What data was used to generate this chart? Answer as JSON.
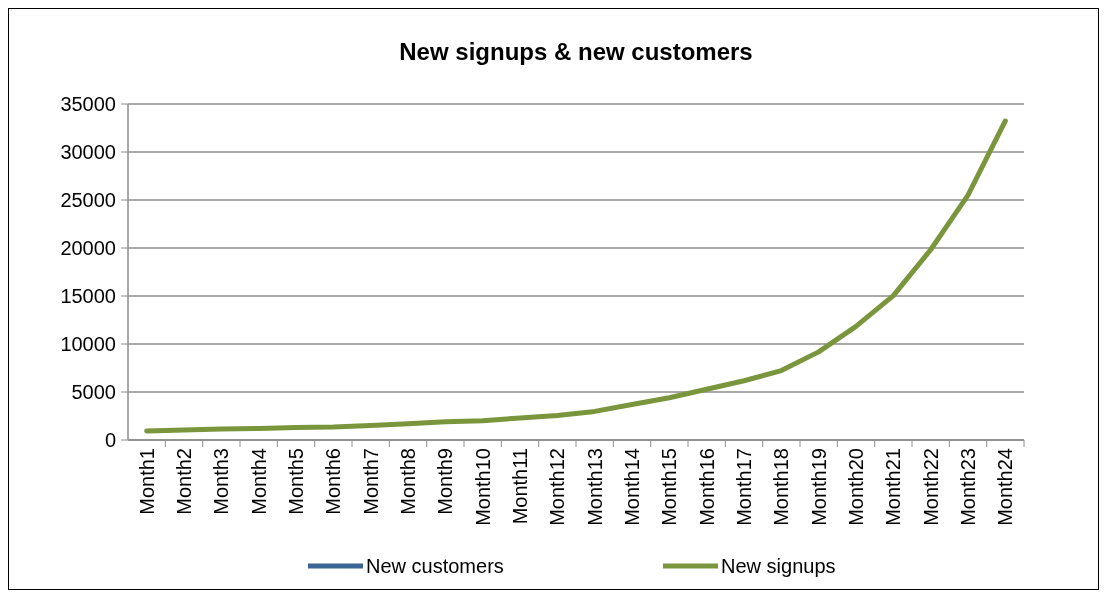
{
  "chart_data": {
    "type": "line",
    "title": "New signups & new customers",
    "categories": [
      "Month1",
      "Month2",
      "Month3",
      "Month4",
      "Month5",
      "Month6",
      "Month7",
      "Month8",
      "Month9",
      "Month10",
      "Month11",
      "Month12",
      "Month13",
      "Month14",
      "Month15",
      "Month16",
      "Month17",
      "Month18",
      "Month19",
      "Month20",
      "Month21",
      "Month22",
      "Month23",
      "Month24"
    ],
    "series": [
      {
        "name": "New customers",
        "color": "#3a6594",
        "values": [
          null,
          null,
          null,
          null,
          null,
          null,
          null,
          null,
          null,
          null,
          null,
          null,
          null,
          null,
          null,
          null,
          null,
          null,
          null,
          null,
          null,
          null,
          null,
          null
        ]
      },
      {
        "name": "New signups",
        "color": "#7a963c",
        "values": [
          950,
          1050,
          1150,
          1200,
          1300,
          1350,
          1500,
          1700,
          1900,
          2000,
          2300,
          2550,
          2980,
          3690,
          4400,
          5280,
          6170,
          7230,
          9180,
          11840,
          15040,
          19820,
          25500,
          33230
        ]
      }
    ],
    "ylim": [
      0,
      35000
    ],
    "yticks": [
      0,
      5000,
      10000,
      15000,
      20000,
      25000,
      30000,
      35000
    ],
    "grid": "y",
    "legend": "bottom",
    "marker": "none",
    "line_style": "solid"
  }
}
